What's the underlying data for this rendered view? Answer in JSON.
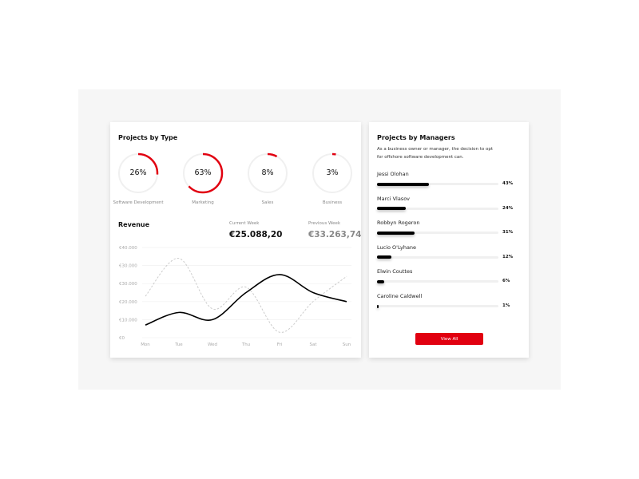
{
  "projects_by_type": {
    "title": "Projects by Type",
    "accent": "#e10010",
    "items": [
      {
        "label": "Software Development",
        "percent": 26,
        "text": "26%"
      },
      {
        "label": "Marketing",
        "percent": 63,
        "text": "63%"
      },
      {
        "label": "Sales",
        "percent": 8,
        "text": "8%"
      },
      {
        "label": "Business",
        "percent": 3,
        "text": "3%"
      }
    ]
  },
  "revenue": {
    "title": "Revenue",
    "current_label": "Current Week",
    "current_value": "€25.088,20",
    "previous_label": "Previous Week",
    "previous_value": "€33.263,74"
  },
  "chart_data": {
    "type": "line",
    "categories": [
      "Mon",
      "Tue",
      "Wed",
      "Thu",
      "Fri",
      "Sat",
      "Sun"
    ],
    "y_tick_labels": [
      "€0",
      "€10.000",
      "€20.000",
      "€30.000",
      "€30.000",
      "€40.000"
    ],
    "ylim": [
      0,
      50000
    ],
    "grid": true,
    "series": [
      {
        "style": "solid",
        "color": "#000000",
        "values": [
          7000,
          14000,
          10000,
          25000,
          35000,
          25000,
          20000
        ]
      },
      {
        "style": "dashed",
        "color": "#cccccc",
        "values": [
          23000,
          44000,
          16000,
          28000,
          3000,
          20000,
          34000
        ]
      }
    ]
  },
  "managers": {
    "title": "Projects by Managers",
    "description": "As a business owner or manager, the decision to opt for offshore software development can.",
    "items": [
      {
        "name": "Jessi Olohan",
        "percent": 43,
        "text": "43%"
      },
      {
        "name": "Marci Vlasov",
        "percent": 24,
        "text": "24%"
      },
      {
        "name": "Robbyn Rogeron",
        "percent": 31,
        "text": "31%"
      },
      {
        "name": "Lucio O'Lyhane",
        "percent": 12,
        "text": "12%"
      },
      {
        "name": "Elwin Couttes",
        "percent": 6,
        "text": "6%"
      },
      {
        "name": "Caroline Caldwell",
        "percent": 1,
        "text": "1%"
      }
    ],
    "button": "View All"
  }
}
